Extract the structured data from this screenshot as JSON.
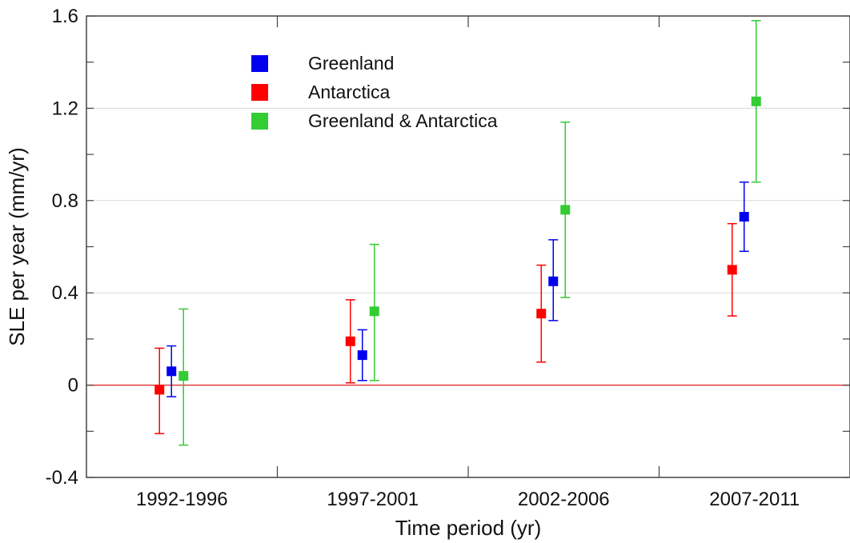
{
  "chart_data": {
    "type": "scatter",
    "xlabel": "Time period (yr)",
    "ylabel": "SLE per year (mm/yr)",
    "categories": [
      "1992-1996",
      "1997-2001",
      "2002-2006",
      "2007-2011"
    ],
    "ylim": [
      -0.4,
      1.6
    ],
    "yticks": [
      -0.4,
      0,
      0.4,
      0.8,
      1.2,
      1.6
    ],
    "ytick_labels": [
      "-0.4",
      "0",
      "0.4",
      "0.8",
      "1.2",
      "1.6"
    ],
    "reference_line": {
      "y": 0,
      "color": "#e23b3b"
    },
    "grid": "horizontal",
    "legend_position": "top-left",
    "series": [
      {
        "name": "Antarctica",
        "color": "#ff0000",
        "values": [
          -0.02,
          0.19,
          0.31,
          0.5
        ],
        "error_low": [
          -0.21,
          0.01,
          0.1,
          0.3
        ],
        "error_high": [
          0.16,
          0.37,
          0.52,
          0.7
        ]
      },
      {
        "name": "Greenland",
        "color": "#0000ee",
        "values": [
          0.06,
          0.13,
          0.45,
          0.73
        ],
        "error_low": [
          -0.05,
          0.02,
          0.28,
          0.58
        ],
        "error_high": [
          0.17,
          0.24,
          0.63,
          0.88
        ]
      },
      {
        "name": "Greenland & Antarctica",
        "color": "#33cc33",
        "values": [
          0.04,
          0.32,
          0.76,
          1.23
        ],
        "error_low": [
          -0.26,
          0.02,
          0.38,
          0.88
        ],
        "error_high": [
          0.33,
          0.61,
          1.14,
          1.58
        ]
      }
    ],
    "legend_order": [
      {
        "label": "Greenland",
        "color": "#0000ee"
      },
      {
        "label": "Antarctica",
        "color": "#ff0000"
      },
      {
        "label": "Greenland & Antarctica",
        "color": "#33cc33"
      }
    ]
  }
}
